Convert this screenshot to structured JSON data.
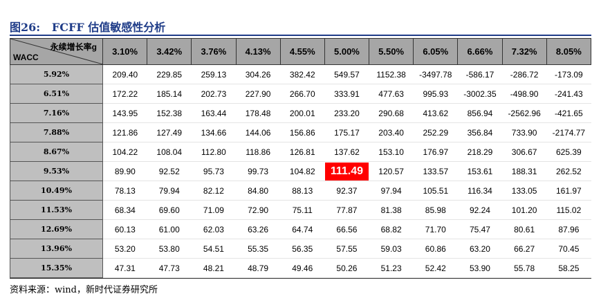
{
  "header": {
    "title": "图26:   FCFF 估值敏感性分析"
  },
  "table": {
    "corner_top": "永续增长率g",
    "corner_bottom": "WACC",
    "columns": [
      "3.10%",
      "3.42%",
      "3.76%",
      "4.13%",
      "4.55%",
      "5.00%",
      "5.50%",
      "6.05%",
      "6.66%",
      "7.32%",
      "8.05%"
    ],
    "row_headers": [
      "5.92%",
      "6.51%",
      "7.16%",
      "7.88%",
      "8.67%",
      "9.53%",
      "10.49%",
      "11.53%",
      "12.69%",
      "13.96%",
      "15.35%"
    ],
    "rows": [
      [
        "209.40",
        "229.85",
        "259.13",
        "304.26",
        "382.42",
        "549.57",
        "1152.38",
        "-3497.78",
        "-586.17",
        "-286.72",
        "-173.09"
      ],
      [
        "172.22",
        "185.14",
        "202.73",
        "227.90",
        "266.70",
        "333.91",
        "477.63",
        "995.93",
        "-3002.35",
        "-498.90",
        "-241.43"
      ],
      [
        "143.95",
        "152.38",
        "163.44",
        "178.48",
        "200.01",
        "233.20",
        "290.68",
        "413.62",
        "856.94",
        "-2562.96",
        "-421.65"
      ],
      [
        "121.86",
        "127.49",
        "134.66",
        "144.06",
        "156.86",
        "175.17",
        "203.40",
        "252.29",
        "356.84",
        "733.90",
        "-2174.77"
      ],
      [
        "104.22",
        "108.04",
        "112.80",
        "118.86",
        "126.81",
        "137.62",
        "153.10",
        "176.97",
        "218.29",
        "306.67",
        "625.39"
      ],
      [
        "89.90",
        "92.52",
        "95.73",
        "99.73",
        "104.82",
        "111.49",
        "120.57",
        "133.57",
        "153.61",
        "188.31",
        "262.52"
      ],
      [
        "78.13",
        "79.94",
        "82.12",
        "84.80",
        "88.13",
        "92.37",
        "97.94",
        "105.51",
        "116.34",
        "133.05",
        "161.97"
      ],
      [
        "68.34",
        "69.60",
        "71.09",
        "72.90",
        "75.11",
        "77.87",
        "81.38",
        "85.98",
        "92.24",
        "101.20",
        "115.02"
      ],
      [
        "60.13",
        "61.00",
        "62.03",
        "63.26",
        "64.74",
        "66.56",
        "68.82",
        "71.70",
        "75.47",
        "80.61",
        "87.96"
      ],
      [
        "53.20",
        "53.80",
        "54.51",
        "55.35",
        "56.35",
        "57.55",
        "59.03",
        "60.86",
        "63.20",
        "66.27",
        "70.45"
      ],
      [
        "47.31",
        "47.73",
        "48.21",
        "48.79",
        "49.46",
        "50.26",
        "51.23",
        "52.42",
        "53.90",
        "55.78",
        "58.25"
      ]
    ]
  },
  "footer": {
    "source": "资料来源：wind，新时代证券研究所"
  }
}
